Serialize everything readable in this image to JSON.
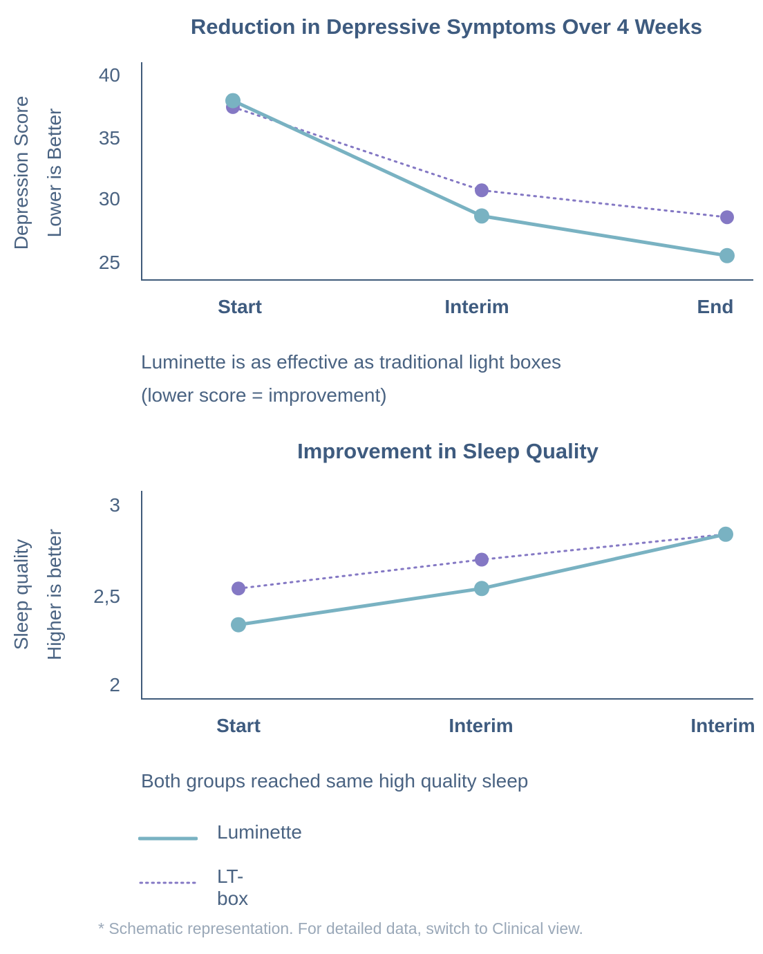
{
  "charts": [
    {
      "title": "Reduction in Depressive Symptoms Over 4 Weeks",
      "ylabel_line1": "Depression Score",
      "ylabel_line2": "Lower is Better",
      "y_ticks": [
        "40",
        "35",
        "30",
        "25"
      ],
      "categories": [
        "Start",
        "Interim",
        "End"
      ],
      "caption_line1": "Luminette is as effective as traditional light boxes",
      "caption_line2": "(lower score = improvement)"
    },
    {
      "title": "Improvement in Sleep Quality",
      "ylabel_line1": "Sleep quality",
      "ylabel_line2": "Higher is better",
      "y_ticks": [
        "3",
        "2,5",
        "2"
      ],
      "categories": [
        "Start",
        "Interim",
        "Interim"
      ],
      "caption_line1": "Both groups reached same high quality sleep"
    }
  ],
  "legend": {
    "luminette": "Luminette",
    "ltbox": "LT-box"
  },
  "footnote": "* Schematic representation. For detailed data, switch to Clinical view.",
  "colors": {
    "luminette": "#79b2c2",
    "ltbox": "#8478c4",
    "axis": "#3f5a7a",
    "title": "#3e5b7f"
  },
  "chart_data": [
    {
      "type": "line",
      "title": "Reduction in Depressive Symptoms Over 4 Weeks",
      "xlabel": "",
      "ylabel": "Depression Score Lower is Better",
      "categories": [
        "Start",
        "Interim",
        "End"
      ],
      "ylim": [
        23.5,
        40.5
      ],
      "yticks": [
        25,
        30,
        35,
        40
      ],
      "series": [
        {
          "name": "Luminette",
          "style": "solid",
          "values": [
            37.5,
            28.5,
            25.4
          ]
        },
        {
          "name": "LT-box",
          "style": "dotted",
          "values": [
            37.0,
            30.5,
            28.4
          ]
        }
      ]
    },
    {
      "type": "line",
      "title": "Improvement in Sleep Quality",
      "xlabel": "",
      "ylabel": "Sleep quality Higher is better",
      "categories": [
        "Start",
        "Interim",
        "Interim"
      ],
      "ylim": [
        1.93,
        3.08
      ],
      "yticks": [
        2,
        2.5,
        3
      ],
      "series": [
        {
          "name": "Luminette",
          "style": "solid",
          "values": [
            2.34,
            2.54,
            2.84
          ]
        },
        {
          "name": "LT-box",
          "style": "dotted",
          "values": [
            2.54,
            2.7,
            2.84
          ]
        }
      ]
    }
  ]
}
